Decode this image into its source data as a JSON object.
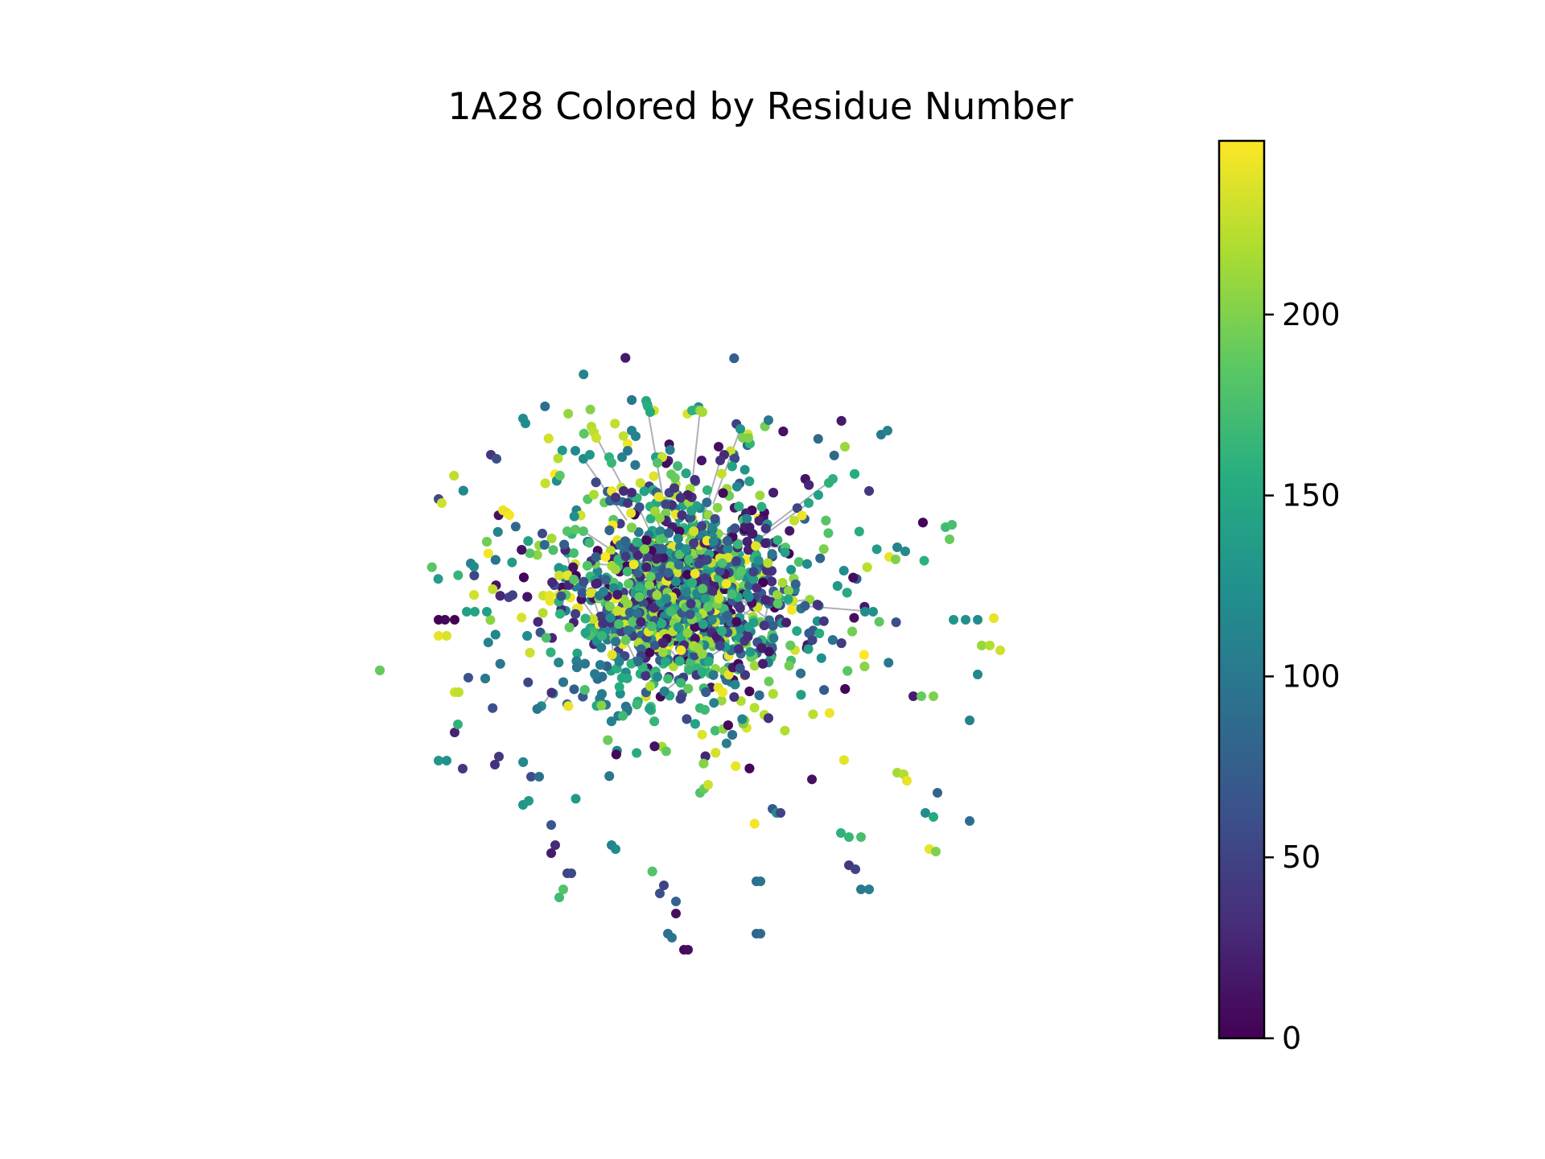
{
  "chart_data": {
    "type": "network",
    "title": "1A28 Colored by Residue Number",
    "xlabel": "",
    "ylabel": "",
    "axes_visible": false,
    "grid": false,
    "node_color_by": "residue number",
    "colormap": "viridis",
    "colorbar": {
      "position": "right",
      "range": [
        0,
        248
      ],
      "ticks": [
        0,
        50,
        100,
        150,
        200
      ],
      "tick_labels": [
        "0",
        "50",
        "100",
        "150",
        "200"
      ]
    },
    "edge_color": "#b0b0b8",
    "node_count_estimate": 2500,
    "layout": "force-directed, dense central core with peripheral isolated fragments",
    "nodes": [
      [
        -42,
        242,
        150
      ],
      [
        -40,
        235,
        155
      ],
      [
        -37,
        228,
        150
      ],
      [
        -110,
        210,
        220
      ],
      [
        -107,
        203,
        225
      ],
      [
        -104,
        196,
        230
      ],
      [
        15,
        230,
        160
      ],
      [
        20,
        231,
        160
      ],
      [
        25,
        230,
        210
      ],
      [
        28,
        228,
        215
      ],
      [
        -60,
        205,
        110
      ],
      [
        -55,
        198,
        110
      ],
      [
        75,
        207,
        130
      ],
      [
        110,
        218,
        100
      ],
      [
        78,
        196,
        200
      ],
      [
        85,
        196,
        200
      ],
      [
        -195,
        220,
        120
      ],
      [
        -192,
        214,
        120
      ],
      [
        48,
        185,
        10
      ],
      [
        55,
        175,
        30
      ],
      [
        50,
        168,
        35
      ],
      [
        -65,
        180,
        100
      ],
      [
        -72,
        172,
        110
      ],
      [
        -130,
        180,
        115
      ],
      [
        -120,
        170,
        120
      ],
      [
        -112,
        175,
        130
      ],
      [
        -88,
        172,
        160
      ],
      [
        -85,
        165,
        165
      ],
      [
        -30,
        172,
        140
      ],
      [
        -22,
        172,
        230
      ],
      [
        -28,
        165,
        180
      ],
      [
        -235,
        175,
        40
      ],
      [
        -228,
        170,
        60
      ],
      [
        250,
        200,
        100
      ],
      [
        258,
        205,
        110
      ],
      [
        185,
        140,
        160
      ],
      [
        190,
        145,
        160
      ],
      [
        205,
        185,
        210
      ],
      [
        235,
        130,
        40
      ],
      [
        -70,
        130,
        30
      ],
      [
        -60,
        128,
        30
      ],
      [
        -80,
        122,
        35
      ],
      [
        -65,
        115,
        40
      ],
      [
        -300,
        120,
        55
      ],
      [
        -296,
        115,
        230
      ],
      [
        -220,
        106,
        240
      ],
      [
        -215,
        103,
        240
      ],
      [
        -212,
        100,
        245
      ],
      [
        160,
        115,
        150
      ],
      [
        172,
        125,
        140
      ],
      [
        -140,
        80,
        180
      ],
      [
        -130,
        82,
        185
      ],
      [
        -120,
        80,
        180
      ],
      [
        330,
        85,
        170
      ],
      [
        338,
        88,
        175
      ],
      [
        335,
        70,
        190
      ],
      [
        270,
        60,
        110
      ],
      [
        280,
        55,
        120
      ],
      [
        260,
        48,
        240
      ],
      [
        268,
        45,
        200
      ],
      [
        -260,
        40,
        110
      ],
      [
        -256,
        36,
        120
      ],
      [
        -150,
        25,
        230
      ],
      [
        -140,
        25,
        240
      ],
      [
        -132,
        20,
        180
      ],
      [
        -170,
        0,
        230
      ],
      [
        -162,
        0,
        240
      ],
      [
        -100,
        0,
        100
      ],
      [
        -95,
        5,
        110
      ],
      [
        -300,
        -30,
        0
      ],
      [
        -292,
        -30,
        5
      ],
      [
        -280,
        -30,
        0
      ],
      [
        -265,
        -20,
        140
      ],
      [
        -255,
        -20,
        145
      ],
      [
        -240,
        -20,
        140
      ],
      [
        -300,
        -50,
        240
      ],
      [
        -290,
        -50,
        235
      ],
      [
        -280,
        -120,
        230
      ],
      [
        -275,
        -120,
        225
      ],
      [
        230,
        -20,
        120
      ],
      [
        240,
        -20,
        125
      ],
      [
        340,
        -30,
        130
      ],
      [
        355,
        -30,
        125
      ],
      [
        370,
        -30,
        120
      ],
      [
        390,
        -28,
        240
      ],
      [
        375,
        -62,
        210
      ],
      [
        385,
        -62,
        220
      ],
      [
        398,
        -68,
        230
      ],
      [
        370,
        -98,
        115
      ],
      [
        290,
        -125,
        20
      ],
      [
        300,
        -125,
        190
      ],
      [
        315,
        -125,
        200
      ],
      [
        360,
        -155,
        110
      ],
      [
        -280,
        -170,
        25
      ],
      [
        -276,
        -160,
        160
      ],
      [
        -300,
        -205,
        130
      ],
      [
        -290,
        -205,
        125
      ],
      [
        -230,
        -210,
        35
      ],
      [
        -225,
        -200,
        40
      ],
      [
        -270,
        -215,
        40
      ],
      [
        -185,
        -225,
        60
      ],
      [
        -175,
        -225,
        90
      ],
      [
        -195,
        -260,
        130
      ],
      [
        -188,
        -255,
        135
      ],
      [
        -160,
        -285,
        70
      ],
      [
        25,
        -245,
        180
      ],
      [
        30,
        -240,
        190
      ],
      [
        35,
        -235,
        230
      ],
      [
        115,
        -265,
        70
      ],
      [
        120,
        -270,
        120
      ],
      [
        125,
        -270,
        50
      ],
      [
        270,
        -220,
        215
      ],
      [
        278,
        -222,
        220
      ],
      [
        282,
        -230,
        240
      ],
      [
        320,
        -245,
        80
      ],
      [
        305,
        -270,
        120
      ],
      [
        315,
        -275,
        150
      ],
      [
        200,
        -295,
        160
      ],
      [
        210,
        -300,
        165
      ],
      [
        225,
        -300,
        175
      ],
      [
        -160,
        -320,
        20
      ],
      [
        -155,
        -310,
        30
      ],
      [
        -85,
        -310,
        110
      ],
      [
        -80,
        -315,
        120
      ],
      [
        -140,
        -345,
        50
      ],
      [
        -135,
        -345,
        55
      ],
      [
        -25,
        -370,
        60
      ],
      [
        -20,
        -360,
        50
      ],
      [
        -150,
        -375,
        170
      ],
      [
        -145,
        -365,
        180
      ],
      [
        95,
        -355,
        90
      ],
      [
        100,
        -355,
        95
      ],
      [
        210,
        -335,
        40
      ],
      [
        218,
        -340,
        50
      ],
      [
        225,
        -365,
        100
      ],
      [
        235,
        -365,
        105
      ],
      [
        -5,
        -380,
        80
      ],
      [
        -5,
        -395,
        10
      ],
      [
        310,
        -315,
        240
      ],
      [
        318,
        -318,
        200
      ],
      [
        360,
        -280,
        90
      ],
      [
        95,
        -420,
        80
      ],
      [
        100,
        -420,
        85
      ],
      [
        -15,
        -420,
        90
      ],
      [
        -10,
        -425,
        95
      ],
      [
        5,
        -440,
        5
      ],
      [
        10,
        -440,
        10
      ]
    ]
  }
}
